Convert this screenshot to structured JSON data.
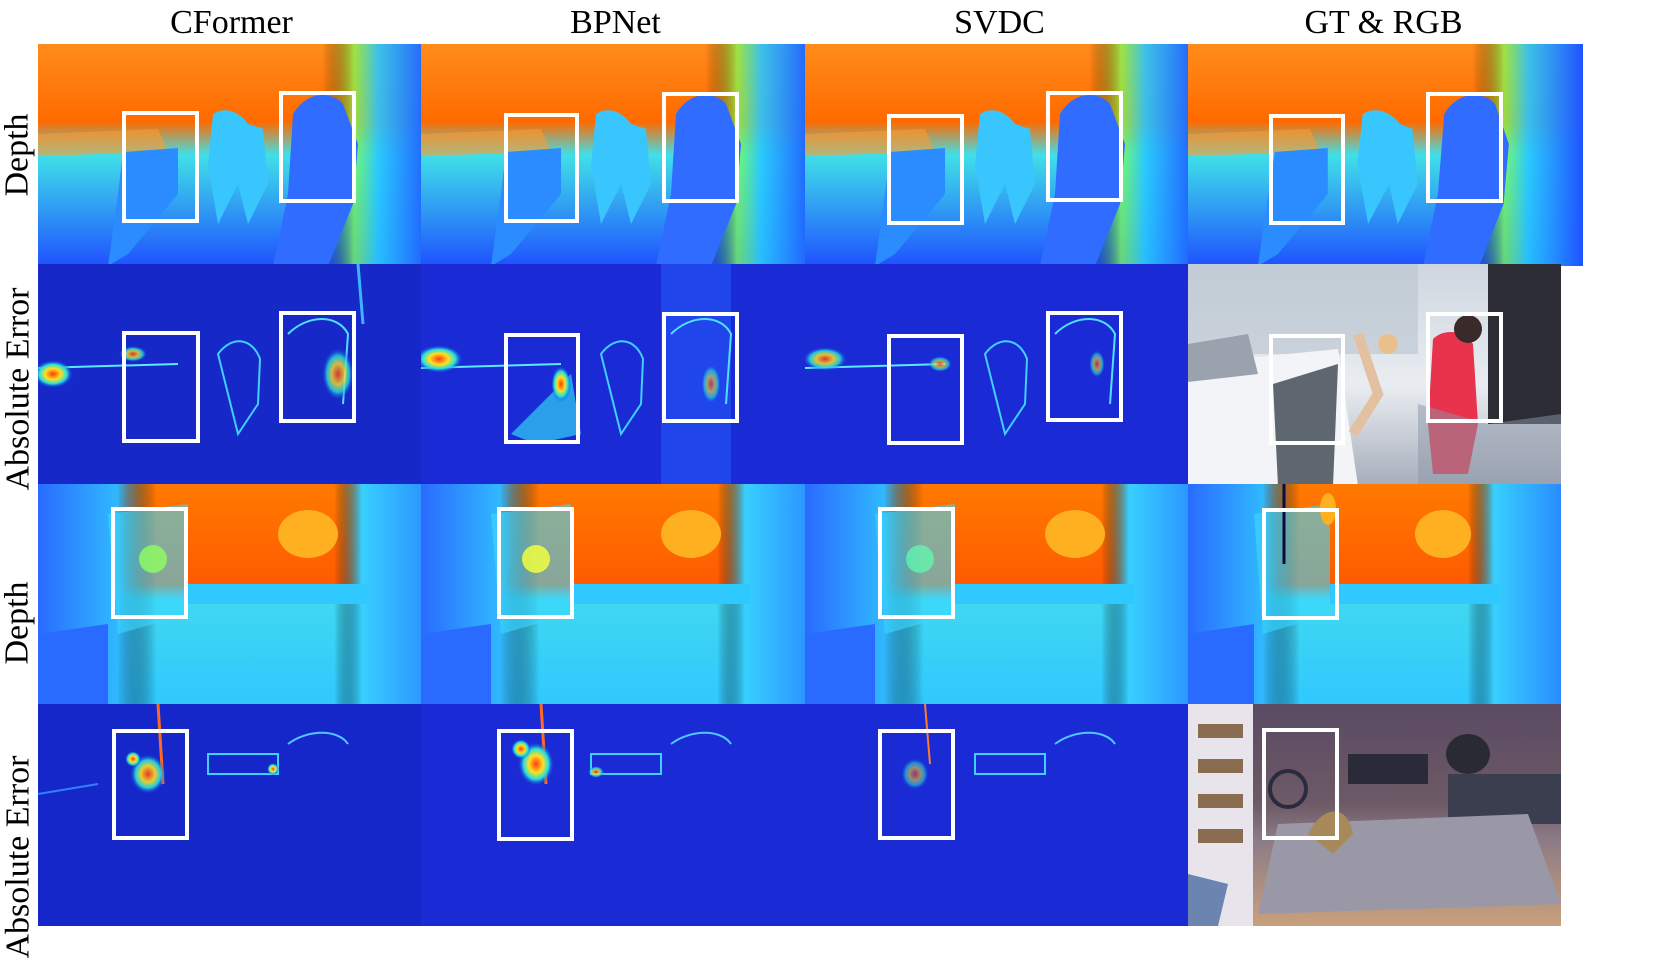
{
  "figure": {
    "columns": [
      {
        "id": "cformer",
        "label": "CFormer"
      },
      {
        "id": "bpnet",
        "label": "BPNet"
      },
      {
        "id": "svdc",
        "label": "SVDC"
      },
      {
        "id": "gt-rgb",
        "label": "GT & RGB"
      }
    ],
    "rows": [
      {
        "id": "row1",
        "label": "Depth",
        "scene": "office",
        "kind": "depth"
      },
      {
        "id": "row2",
        "label": "Absolute Error",
        "scene": "office",
        "kind": "error"
      },
      {
        "id": "row3",
        "label": "Depth",
        "scene": "living-room",
        "kind": "depth"
      },
      {
        "id": "row4",
        "label": "Absolute Error",
        "scene": "living-room",
        "kind": "error"
      }
    ],
    "colormap": {
      "far": "#ff7a00",
      "mid": "#29e0f0",
      "near": "#1f4dff",
      "error_low": "#1a2bd6",
      "error_high": "#ff3010"
    }
  }
}
